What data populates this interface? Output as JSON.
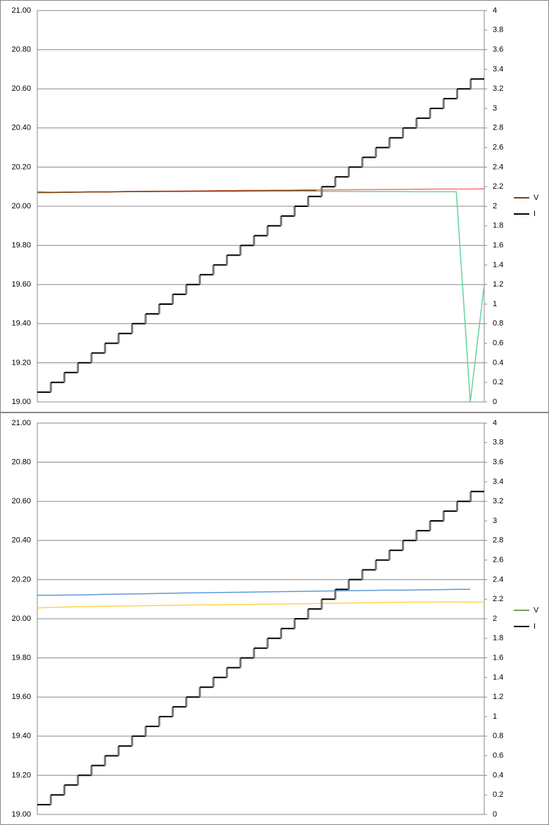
{
  "chart_data": [
    {
      "type": "line",
      "ylim": [
        19,
        21
      ],
      "yticks": [
        {
          "value": 19,
          "label": "19.00"
        },
        {
          "value": 19.2,
          "label": "19.20"
        },
        {
          "value": 19.4,
          "label": "19.40"
        },
        {
          "value": 19.6,
          "label": "19.60"
        },
        {
          "value": 19.8,
          "label": "19.80"
        },
        {
          "value": 20,
          "label": "20.00"
        },
        {
          "value": 20.2,
          "label": "20.20"
        },
        {
          "value": 20.4,
          "label": "20.40"
        },
        {
          "value": 20.6,
          "label": "20.60"
        },
        {
          "value": 20.8,
          "label": "20.80"
        },
        {
          "value": 21,
          "label": "21.00"
        }
      ],
      "y2lim": [
        0,
        4
      ],
      "y2ticks": [
        0,
        0.2,
        0.4,
        0.6,
        0.8,
        1,
        1.2,
        1.4,
        1.6,
        1.8,
        2,
        2.2,
        2.4,
        2.6,
        2.8,
        3,
        3.2,
        3.4,
        3.6,
        3.8,
        4
      ],
      "grid": true,
      "series": [
        {
          "color": "#ff7070",
          "values": [
            20.07,
            20.07,
            20.072,
            20.073,
            20.074,
            20.074,
            20.075,
            20.076,
            20.077,
            20.077,
            20.078,
            20.078,
            20.079,
            20.08,
            20.08,
            20.081,
            20.081,
            20.082,
            20.082,
            20.083,
            20.083,
            20.084,
            20.084,
            20.085,
            20.085,
            20.086,
            20.086,
            20.087,
            20.087,
            20.088,
            20.088,
            20.088,
            20.089
          ]
        },
        {
          "color": "#66d39a",
          "values": [
            20.075,
            20.072,
            20.073,
            20.073,
            20.074,
            20.074,
            20.075,
            20.075,
            20.075,
            20.076,
            20.076,
            20.076,
            20.077,
            20.077,
            20.077,
            20.077,
            20.078,
            20.078,
            20.078,
            20.078,
            20.077,
            20.076,
            20.076,
            20.075,
            20.075,
            20.075,
            20.075,
            20.074,
            20.074,
            20.074,
            20.074,
            19.0,
            19.6
          ]
        },
        {
          "name": "V",
          "color": "#843c0c",
          "values": [
            20.07,
            20.07,
            20.071,
            20.072,
            20.073,
            20.073,
            20.074,
            20.075,
            20.075,
            20.076,
            20.076,
            20.077,
            20.077,
            20.078,
            20.078,
            20.079,
            20.079,
            20.08,
            20.08,
            20.081,
            20.081,
            null,
            null,
            null,
            null,
            null,
            null,
            null,
            null,
            null,
            null,
            null,
            null
          ]
        },
        {
          "name": "I",
          "color": "#000000",
          "axis": "y2",
          "values": [
            0.1,
            0.2,
            0.3,
            0.4,
            0.5,
            0.6,
            0.7,
            0.8,
            0.9,
            1,
            1.1,
            1.2,
            1.3,
            1.4,
            1.5,
            1.6,
            1.7,
            1.8,
            1.9,
            2,
            2.1,
            2.2,
            2.3,
            2.4,
            2.5,
            2.6,
            2.7,
            2.8,
            2.9,
            3,
            3.1,
            3.2,
            3.3
          ]
        }
      ]
    },
    {
      "type": "line",
      "ylim": [
        19,
        21
      ],
      "yticks": [
        {
          "value": 19,
          "label": "19.00"
        },
        {
          "value": 19.2,
          "label": "19.20"
        },
        {
          "value": 19.4,
          "label": "19.40"
        },
        {
          "value": 19.6,
          "label": "19.60"
        },
        {
          "value": 19.8,
          "label": "19.80"
        },
        {
          "value": 20,
          "label": "20.00"
        },
        {
          "value": 20.2,
          "label": "20.20"
        },
        {
          "value": 20.4,
          "label": "20.40"
        },
        {
          "value": 20.6,
          "label": "20.60"
        },
        {
          "value": 20.8,
          "label": "20.80"
        },
        {
          "value": 21,
          "label": "21.00"
        }
      ],
      "y2lim": [
        0,
        4
      ],
      "y2ticks": [
        0,
        0.2,
        0.4,
        0.6,
        0.8,
        1,
        1.2,
        1.4,
        1.6,
        1.8,
        2,
        2.2,
        2.4,
        2.6,
        2.8,
        3,
        3.2,
        3.4,
        3.6,
        3.8,
        4
      ],
      "grid": true,
      "series": [
        {
          "color": "#5b9bd5",
          "values": [
            20.12,
            20.12,
            20.121,
            20.122,
            20.123,
            20.125,
            20.126,
            20.127,
            20.128,
            20.13,
            20.131,
            20.132,
            20.133,
            20.134,
            20.135,
            20.136,
            20.137,
            20.138,
            20.139,
            20.14,
            20.141,
            20.142,
            20.143,
            20.144,
            20.145,
            20.146,
            20.146,
            20.147,
            20.148,
            20.149,
            20.15,
            20.15,
            null
          ]
        },
        {
          "color": "#ffd54f",
          "values": [
            20.055,
            20.058,
            20.06,
            20.062,
            20.063,
            20.064,
            20.065,
            20.066,
            20.067,
            20.068,
            20.069,
            20.07,
            20.071,
            20.072,
            20.072,
            20.073,
            20.074,
            20.075,
            20.076,
            20.077,
            20.078,
            20.079,
            20.08,
            20.081,
            20.082,
            20.083,
            20.084,
            20.085,
            20.085,
            20.086,
            20.086,
            20.085,
            20.085
          ]
        },
        {
          "name": "V",
          "color": "#7fa050",
          "values": [
            null,
            null,
            null,
            null,
            null,
            null,
            null,
            null,
            null,
            null,
            null,
            null,
            null,
            null,
            null,
            null,
            null,
            null,
            null,
            null,
            null,
            null,
            null,
            null,
            null,
            null,
            null,
            null,
            null,
            null,
            null,
            null,
            null
          ]
        },
        {
          "name": "I",
          "color": "#000000",
          "axis": "y2",
          "values": [
            0.1,
            0.2,
            0.3,
            0.4,
            0.5,
            0.6,
            0.7,
            0.8,
            0.9,
            1,
            1.1,
            1.2,
            1.3,
            1.4,
            1.5,
            1.6,
            1.7,
            1.8,
            1.9,
            2,
            2.1,
            2.2,
            2.3,
            2.4,
            2.5,
            2.6,
            2.7,
            2.8,
            2.9,
            3,
            3.1,
            3.2,
            3.3
          ]
        }
      ]
    }
  ]
}
